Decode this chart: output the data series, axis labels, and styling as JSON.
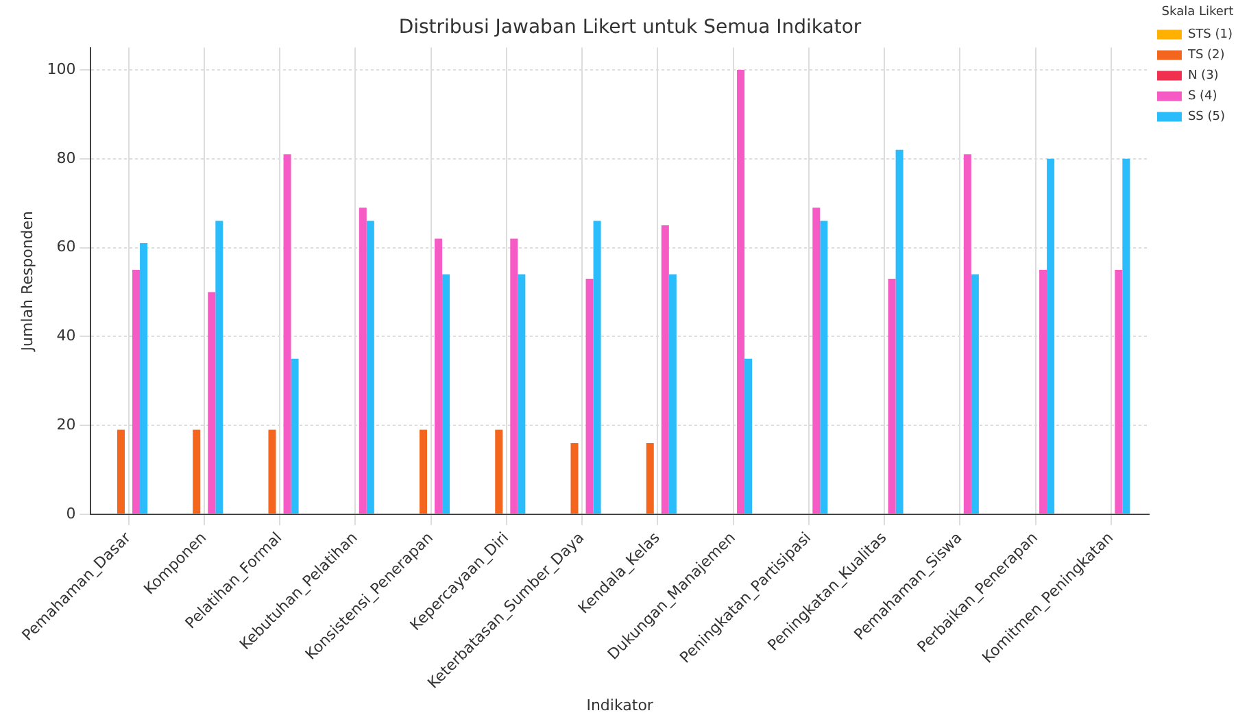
{
  "chart_data": {
    "type": "bar",
    "title": "Distribusi Jawaban Likert untuk Semua Indikator",
    "xlabel": "Indikator",
    "ylabel": "Jumlah Responden",
    "legend_title": "Skala Likert",
    "categories": [
      "Pemahaman_Dasar",
      "Komponen",
      "Pelatihan_Formal",
      "Kebutuhan_Pelatihan",
      "Konsistensi_Penerapan",
      "Kepercayaan_Diri",
      "Keterbatasan_Sumber_Daya",
      "Kendala_Kelas",
      "Dukungan_Manajemen",
      "Peningkatan_Partisipasi",
      "Peningkatan_Kualitas",
      "Pemahaman_Siswa",
      "Perbaikan_Penerapan",
      "Komitmen_Peningkatan"
    ],
    "series": [
      {
        "name": "STS (1)",
        "color": "#ffb000",
        "values": [
          0,
          0,
          0,
          0,
          0,
          0,
          0,
          0,
          0,
          0,
          0,
          0,
          0,
          0
        ]
      },
      {
        "name": "TS (2)",
        "color": "#f4661e",
        "values": [
          19,
          19,
          19,
          0,
          19,
          19,
          16,
          16,
          0,
          0,
          0,
          0,
          0,
          0
        ]
      },
      {
        "name": "N (3)",
        "color": "#f0304e",
        "values": [
          0,
          0,
          0,
          0,
          0,
          0,
          0,
          0,
          0,
          0,
          0,
          0,
          0,
          0
        ]
      },
      {
        "name": "S (4)",
        "color": "#f55ac5",
        "values": [
          55,
          50,
          81,
          69,
          62,
          62,
          53,
          65,
          100,
          69,
          53,
          81,
          55,
          55
        ]
      },
      {
        "name": "SS (5)",
        "color": "#2bbcfb",
        "values": [
          61,
          66,
          35,
          66,
          54,
          54,
          66,
          54,
          35,
          66,
          82,
          54,
          80,
          80
        ]
      }
    ],
    "ylim": [
      0,
      105
    ],
    "yticks": [
      0,
      20,
      40,
      60,
      80,
      100
    ],
    "grid": true,
    "legend": "top right"
  }
}
